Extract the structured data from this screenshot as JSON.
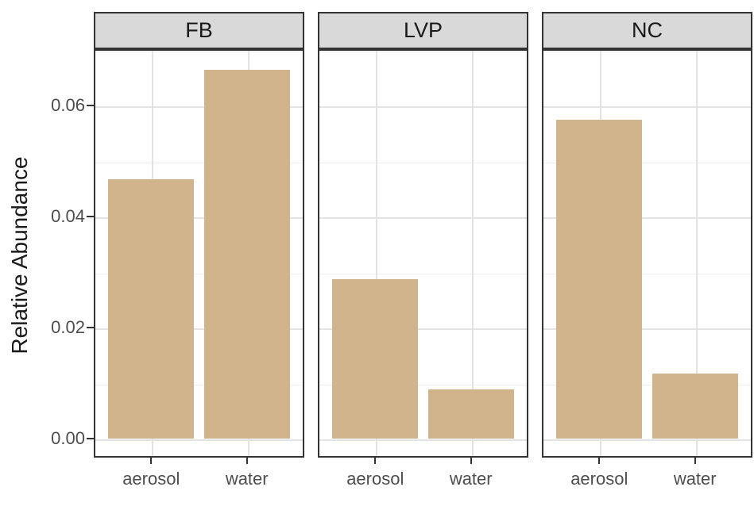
{
  "chart_data": {
    "type": "bar",
    "title": "",
    "xlabel": "",
    "ylabel": "Relative Abundance",
    "categories": [
      "aerosol",
      "water"
    ],
    "facets": [
      {
        "label": "FB",
        "values": [
          0.0467,
          0.0664
        ]
      },
      {
        "label": "LVP",
        "values": [
          0.0287,
          0.0089
        ]
      },
      {
        "label": "NC",
        "values": [
          0.0574,
          0.0117
        ]
      }
    ],
    "y_axis": {
      "ticks": [
        {
          "value": 0.0,
          "label": "0.00"
        },
        {
          "value": 0.02,
          "label": "0.02"
        },
        {
          "value": 0.04,
          "label": "0.04"
        },
        {
          "value": 0.06,
          "label": "0.06"
        }
      ],
      "minor_ticks": [
        0.01,
        0.03,
        0.05,
        0.07
      ],
      "range": [
        -0.0034,
        0.0701
      ]
    },
    "grid": true,
    "legend_position": "none",
    "colors": {
      "bar_fill": "#d2b48c",
      "strip_bg": "#d9d9d9",
      "panel_border": "#333333",
      "grid_major": "#e3e3e3",
      "grid_minor": "#efefef",
      "axis_text": "#4d4d4d",
      "axis_title": "#1a1a1a",
      "strip_text": "#1a1a1a"
    }
  }
}
